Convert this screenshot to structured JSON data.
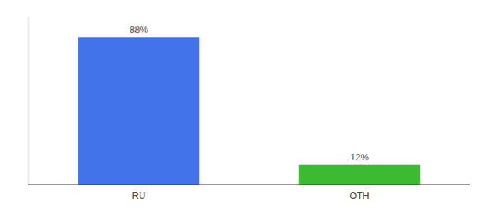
{
  "chart_data": {
    "type": "bar",
    "categories": [
      "RU",
      "OTH"
    ],
    "values": [
      88,
      12
    ],
    "value_labels": [
      "88%",
      "12%"
    ],
    "colors": [
      "#4472e8",
      "#3dbb35"
    ],
    "ylim": [
      0,
      100
    ],
    "data_labels": true,
    "tick_labels": "x"
  }
}
